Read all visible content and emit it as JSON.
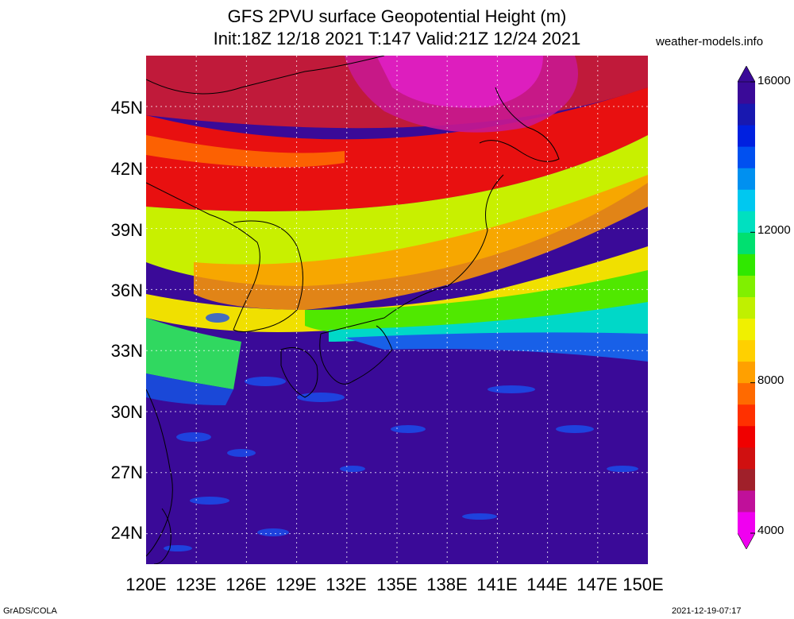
{
  "title_line1": "GFS 2PVU surface Geopotential Height (m)",
  "title_line2": "Init:18Z 12/18 2021 T:147 Valid:21Z 12/24 2021",
  "site": "weather-models.info",
  "footer_left": "GrADS/COLA",
  "footer_right": "2021-12-19-07:17",
  "lat_labels": [
    "45N",
    "42N",
    "39N",
    "36N",
    "33N",
    "30N",
    "27N",
    "24N"
  ],
  "lon_labels": [
    "120E",
    "123E",
    "126E",
    "129E",
    "132E",
    "135E",
    "138E",
    "141E",
    "144E",
    "147E",
    "150E"
  ],
  "colorbar": {
    "labels": [
      "16000",
      "12000",
      "8000",
      "4000"
    ],
    "min": 4000,
    "max": 16000,
    "colors": [
      "#f000f0",
      "#c0109a",
      "#a0202a",
      "#d01010",
      "#f00000",
      "#ff3000",
      "#ff6a00",
      "#ffa000",
      "#ffd000",
      "#f0f000",
      "#c0f000",
      "#80f000",
      "#30e800",
      "#00e070",
      "#00e0c0",
      "#00c8f0",
      "#0090f0",
      "#0050f0",
      "#0020e0",
      "#1818b0",
      "#3a0a98"
    ]
  },
  "map_data": {
    "lon_range": [
      120,
      150
    ],
    "lat_range": [
      22.5,
      47.5
    ],
    "field": "2PVU surface Geopotential Height",
    "units": "m"
  }
}
